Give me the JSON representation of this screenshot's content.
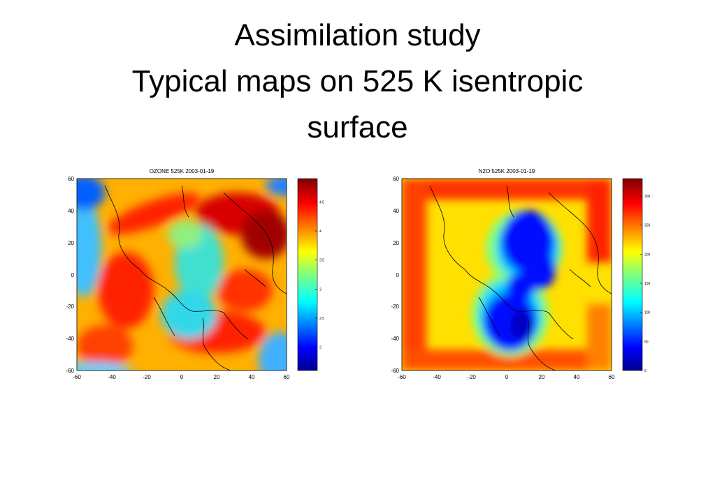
{
  "slide": {
    "title_lines": [
      "Assimilation study",
      "Typical maps on 525 K isentropic",
      "surface"
    ]
  },
  "maps": [
    {
      "id": "ozone",
      "title": "OZONE  525K   2003-01-19",
      "x_ticks": [
        "-60",
        "-40",
        "-20",
        "0",
        "20",
        "40",
        "60"
      ],
      "y_ticks": [
        "60",
        "40",
        "20",
        "0",
        "-20",
        "-40",
        "-60"
      ],
      "colorbar_ticks": [
        "4.5",
        "4",
        "3.5",
        "3",
        "2.5",
        "2"
      ],
      "colorbar_values": [
        4.5,
        4.0,
        3.5,
        3.0,
        2.5,
        2.0
      ],
      "colorbar_range": [
        1.6,
        4.9
      ],
      "pattern": "low-ozone-vortex-center, high-ozone-ring"
    },
    {
      "id": "n2o",
      "title": "N2O  525K   2003-01-19",
      "x_ticks": [
        "-60",
        "-40",
        "-20",
        "0",
        "20",
        "40",
        "60"
      ],
      "y_ticks": [
        "60",
        "40",
        "20",
        "0",
        "-20",
        "-40",
        "-60"
      ],
      "colorbar_ticks": [
        "300",
        "250",
        "200",
        "150",
        "100",
        "50",
        "0"
      ],
      "colorbar_values": [
        300,
        250,
        200,
        150,
        100,
        50,
        0
      ],
      "colorbar_range": [
        0,
        330
      ],
      "pattern": "low-n2o-split-vortex-center, high-n2o-edges"
    }
  ],
  "colors": {
    "jet": [
      "#00008f",
      "#0000ff",
      "#0080ff",
      "#00ffff",
      "#80ff80",
      "#ffff00",
      "#ff8000",
      "#ff0000",
      "#800000"
    ],
    "coastline": "#000000"
  }
}
